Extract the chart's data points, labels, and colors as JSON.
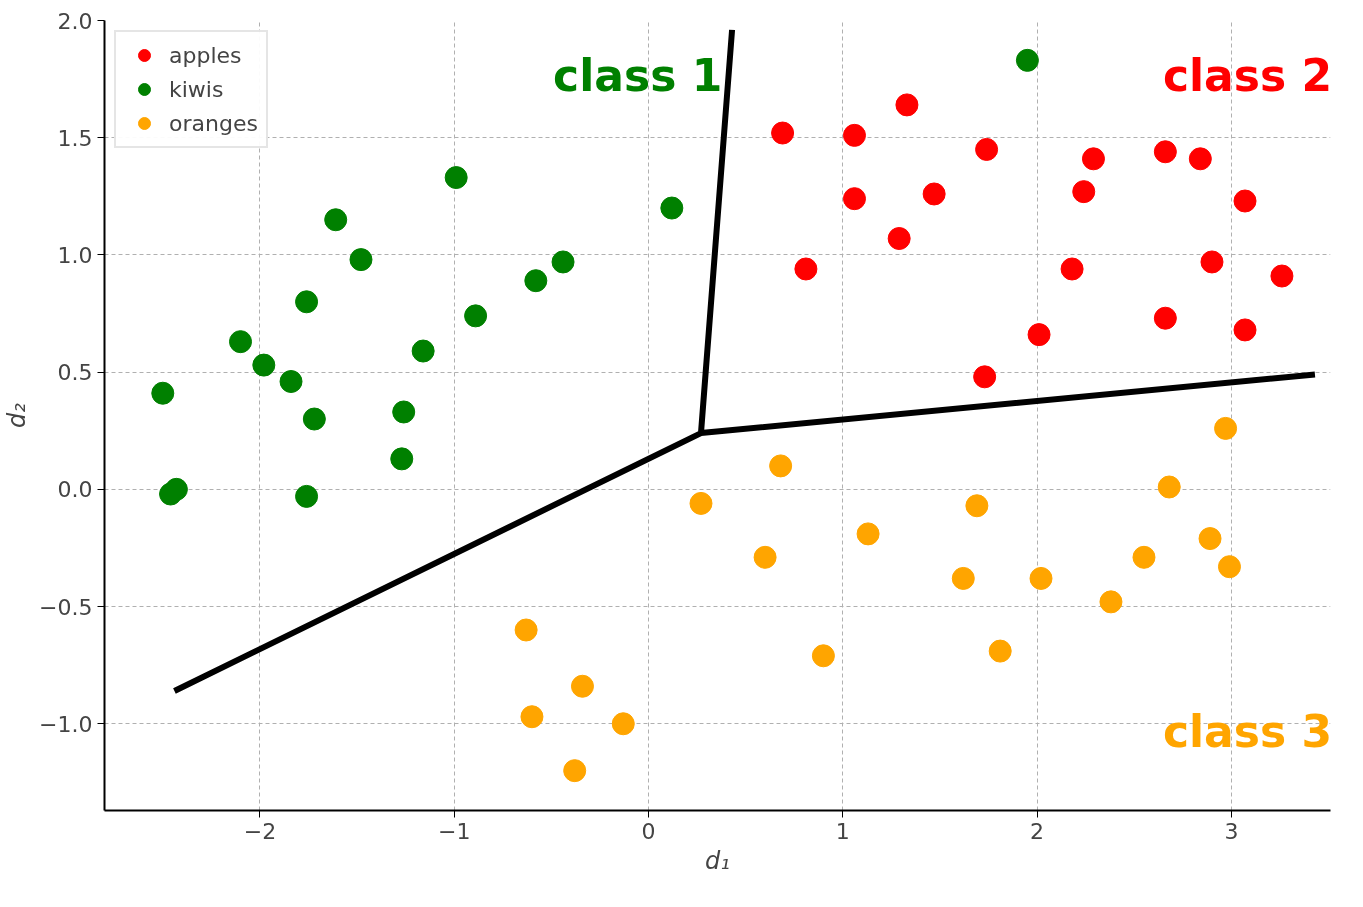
{
  "chart_data": {
    "type": "scatter",
    "xlabel": "d₁",
    "ylabel": "d₂",
    "xlim": [
      -2.8,
      3.51
    ],
    "ylim": [
      -1.37,
      2.0
    ],
    "xticks": [
      {
        "value": -2,
        "label": "−2"
      },
      {
        "value": -1,
        "label": "−1"
      },
      0,
      1,
      2,
      3
    ],
    "yticks": [
      {
        "value": -1.0,
        "label": "−1.0"
      },
      {
        "value": -0.5,
        "label": "−0.5"
      },
      {
        "value": 0,
        "label": "0.0"
      },
      {
        "value": 0.5,
        "label": "0.5"
      },
      {
        "value": 1.0,
        "label": "1.0"
      },
      {
        "value": 1.5,
        "label": "1.5"
      },
      {
        "value": 2.0,
        "label": "2.0"
      }
    ],
    "grid": true,
    "legend": "top left",
    "marker": "circle",
    "series": [
      {
        "name": "apples",
        "color": "#ff0000",
        "x": [
          0.69,
          1.06,
          1.33,
          1.06,
          1.47,
          1.29,
          0.81,
          1.74,
          1.73,
          2.01,
          2.18,
          2.24,
          2.29,
          2.66,
          2.84,
          3.07,
          2.9,
          2.66,
          3.07,
          3.26
        ],
        "values": [
          1.52,
          1.51,
          1.64,
          1.24,
          1.26,
          1.07,
          0.94,
          1.45,
          0.48,
          0.66,
          0.94,
          1.27,
          1.41,
          1.44,
          1.41,
          1.23,
          0.97,
          0.73,
          0.68,
          0.91
        ]
      },
      {
        "name": "kiwis",
        "color": "#008000",
        "x": [
          -2.5,
          -2.46,
          -2.43,
          -2.1,
          -1.98,
          -1.84,
          -1.76,
          -1.76,
          -1.72,
          -1.61,
          -1.48,
          -1.27,
          -1.26,
          -1.16,
          -0.99,
          -0.89,
          -0.58,
          -0.44,
          0.12,
          1.95
        ],
        "values": [
          0.41,
          -0.02,
          0.0,
          0.63,
          0.53,
          0.46,
          0.8,
          -0.03,
          0.3,
          1.15,
          0.98,
          0.13,
          0.33,
          0.59,
          1.33,
          0.74,
          0.89,
          0.97,
          1.2,
          1.83
        ]
      },
      {
        "name": "oranges",
        "color": "#ffa500",
        "x": [
          0.27,
          0.68,
          0.6,
          0.9,
          1.13,
          1.62,
          1.69,
          1.81,
          2.02,
          2.38,
          2.55,
          2.68,
          2.89,
          2.97,
          2.99,
          -0.63,
          -0.6,
          -0.34,
          -0.13,
          -0.38
        ],
        "values": [
          -0.06,
          0.1,
          -0.29,
          -0.71,
          -0.19,
          -0.38,
          -0.07,
          -0.69,
          -0.38,
          -0.48,
          -0.29,
          0.01,
          -0.21,
          0.26,
          -0.33,
          -0.6,
          -0.97,
          -0.84,
          -1.0,
          -1.2
        ]
      },
      {
        "type": "line",
        "marker": "none",
        "color": "#000000",
        "x": [
          -2.44,
          0.27,
          0.43,
          null,
          0.27,
          3.43
        ],
        "values": [
          -0.86,
          0.24,
          1.96,
          null,
          0.24,
          0.49
        ]
      }
    ],
    "annotations": [
      "class 1",
      "class 2",
      "class 3"
    ]
  }
}
